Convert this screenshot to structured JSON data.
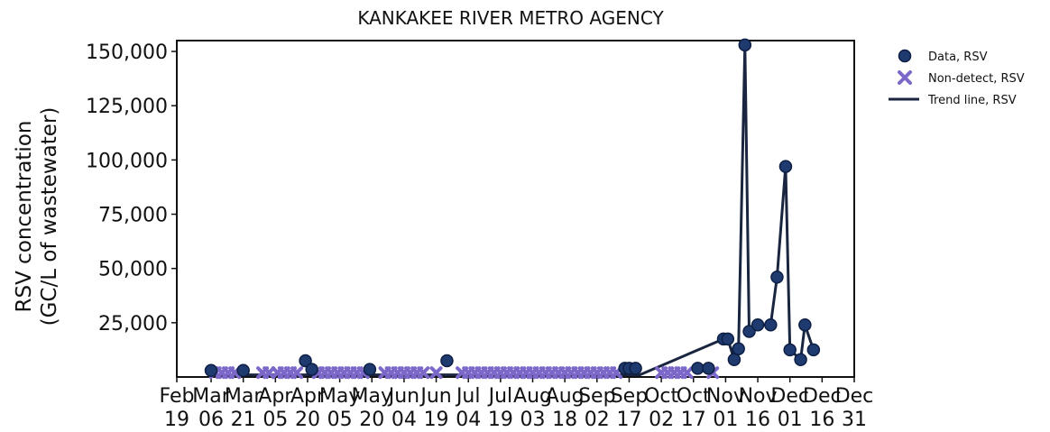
{
  "chart_data": {
    "type": "scatter",
    "title": "KANKAKEE RIVER METRO AGENCY",
    "ylabel_lines": [
      "RSV concentration",
      "(GC/L of wastewater)"
    ],
    "xlabel": "",
    "ylim": [
      0,
      155000
    ],
    "x_range": [
      "2024-02-19",
      "2024-12-31"
    ],
    "y_ticks": [
      {
        "value": 25000,
        "label": "25,000"
      },
      {
        "value": 50000,
        "label": "50,000"
      },
      {
        "value": 75000,
        "label": "75,000"
      },
      {
        "value": 100000,
        "label": "100,000"
      },
      {
        "value": 125000,
        "label": "125,000"
      },
      {
        "value": 150000,
        "label": "150,000"
      }
    ],
    "x_ticks": [
      {
        "date": "2024-02-19",
        "label": [
          "Feb",
          "19"
        ]
      },
      {
        "date": "2024-03-06",
        "label": [
          "Mar",
          "06"
        ]
      },
      {
        "date": "2024-03-21",
        "label": [
          "Mar",
          "21"
        ]
      },
      {
        "date": "2024-04-05",
        "label": [
          "Apr",
          "05"
        ]
      },
      {
        "date": "2024-04-20",
        "label": [
          "Apr",
          "20"
        ]
      },
      {
        "date": "2024-05-05",
        "label": [
          "May",
          "05"
        ]
      },
      {
        "date": "2024-05-20",
        "label": [
          "May",
          "20"
        ]
      },
      {
        "date": "2024-06-04",
        "label": [
          "Jun",
          "04"
        ]
      },
      {
        "date": "2024-06-19",
        "label": [
          "Jun",
          "19"
        ]
      },
      {
        "date": "2024-07-04",
        "label": [
          "Jul",
          "04"
        ]
      },
      {
        "date": "2024-07-19",
        "label": [
          "Jul",
          "19"
        ]
      },
      {
        "date": "2024-08-03",
        "label": [
          "Aug",
          "03"
        ]
      },
      {
        "date": "2024-08-18",
        "label": [
          "Aug",
          "18"
        ]
      },
      {
        "date": "2024-09-02",
        "label": [
          "Sep",
          "02"
        ]
      },
      {
        "date": "2024-09-17",
        "label": [
          "Sep",
          "17"
        ]
      },
      {
        "date": "2024-10-02",
        "label": [
          "Oct",
          "02"
        ]
      },
      {
        "date": "2024-10-17",
        "label": [
          "Oct",
          "17"
        ]
      },
      {
        "date": "2024-11-01",
        "label": [
          "Nov",
          "01"
        ]
      },
      {
        "date": "2024-11-16",
        "label": [
          "Nov",
          "16"
        ]
      },
      {
        "date": "2024-12-01",
        "label": [
          "Dec",
          "01"
        ]
      },
      {
        "date": "2024-12-16",
        "label": [
          "Dec",
          "16"
        ]
      },
      {
        "date": "2024-12-31",
        "label": [
          "Dec",
          "31"
        ]
      }
    ],
    "legend": {
      "placement": "outside-right",
      "entries": [
        {
          "label": "Data, RSV",
          "marker": "circle"
        },
        {
          "label": "Non-detect, RSV",
          "marker": "x"
        },
        {
          "label": "Trend line, RSV",
          "marker": "line"
        }
      ]
    },
    "colors": {
      "data_marker": "#1f3a6e",
      "data_edge": "#0d1f45",
      "nondetect_marker": "#7b68c8",
      "trend_line": "#1a2540"
    },
    "series": [
      {
        "name": "Data, RSV",
        "marker": "circle",
        "points": [
          {
            "x": "2024-03-06",
            "y": 3000
          },
          {
            "x": "2024-03-21",
            "y": 3000
          },
          {
            "x": "2024-04-19",
            "y": 7500
          },
          {
            "x": "2024-04-22",
            "y": 3500
          },
          {
            "x": "2024-05-19",
            "y": 3500
          },
          {
            "x": "2024-06-24",
            "y": 7500
          },
          {
            "x": "2024-09-15",
            "y": 4000
          },
          {
            "x": "2024-09-17",
            "y": 4000
          },
          {
            "x": "2024-09-20",
            "y": 4000
          },
          {
            "x": "2024-10-19",
            "y": 4000
          },
          {
            "x": "2024-10-24",
            "y": 4000
          },
          {
            "x": "2024-10-31",
            "y": 17500
          },
          {
            "x": "2024-11-02",
            "y": 17500
          },
          {
            "x": "2024-11-05",
            "y": 8000
          },
          {
            "x": "2024-11-07",
            "y": 13000
          },
          {
            "x": "2024-11-10",
            "y": 153000
          },
          {
            "x": "2024-11-12",
            "y": 21000
          },
          {
            "x": "2024-11-16",
            "y": 24000
          },
          {
            "x": "2024-11-22",
            "y": 24000
          },
          {
            "x": "2024-11-25",
            "y": 46000
          },
          {
            "x": "2024-11-29",
            "y": 97000
          },
          {
            "x": "2024-12-01",
            "y": 12500
          },
          {
            "x": "2024-12-06",
            "y": 8000
          },
          {
            "x": "2024-12-08",
            "y": 24000
          },
          {
            "x": "2024-12-12",
            "y": 12500
          }
        ]
      },
      {
        "name": "Non-detect, RSV",
        "marker": "x",
        "points": [
          {
            "x": "2024-03-08",
            "y": 2000
          },
          {
            "x": "2024-03-11",
            "y": 2000
          },
          {
            "x": "2024-03-14",
            "y": 2000
          },
          {
            "x": "2024-03-17",
            "y": 2000
          },
          {
            "x": "2024-03-30",
            "y": 2000
          },
          {
            "x": "2024-04-02",
            "y": 2000
          },
          {
            "x": "2024-04-06",
            "y": 2000
          },
          {
            "x": "2024-04-09",
            "y": 2000
          },
          {
            "x": "2024-04-12",
            "y": 2000
          },
          {
            "x": "2024-04-15",
            "y": 2000
          },
          {
            "x": "2024-04-25",
            "y": 2000
          },
          {
            "x": "2024-04-28",
            "y": 2000
          },
          {
            "x": "2024-05-01",
            "y": 2000
          },
          {
            "x": "2024-05-04",
            "y": 2000
          },
          {
            "x": "2024-05-07",
            "y": 2000
          },
          {
            "x": "2024-05-10",
            "y": 2000
          },
          {
            "x": "2024-05-13",
            "y": 2000
          },
          {
            "x": "2024-05-16",
            "y": 2000
          },
          {
            "x": "2024-05-26",
            "y": 2000
          },
          {
            "x": "2024-05-29",
            "y": 2000
          },
          {
            "x": "2024-06-01",
            "y": 2000
          },
          {
            "x": "2024-06-04",
            "y": 2000
          },
          {
            "x": "2024-06-07",
            "y": 2000
          },
          {
            "x": "2024-06-10",
            "y": 2000
          },
          {
            "x": "2024-06-13",
            "y": 2000
          },
          {
            "x": "2024-06-19",
            "y": 2000
          },
          {
            "x": "2024-07-01",
            "y": 2000
          },
          {
            "x": "2024-07-04",
            "y": 2000
          },
          {
            "x": "2024-07-07",
            "y": 2000
          },
          {
            "x": "2024-07-10",
            "y": 2000
          },
          {
            "x": "2024-07-13",
            "y": 2000
          },
          {
            "x": "2024-07-16",
            "y": 2000
          },
          {
            "x": "2024-07-19",
            "y": 2000
          },
          {
            "x": "2024-07-22",
            "y": 2000
          },
          {
            "x": "2024-07-25",
            "y": 2000
          },
          {
            "x": "2024-07-28",
            "y": 2000
          },
          {
            "x": "2024-07-31",
            "y": 2000
          },
          {
            "x": "2024-08-03",
            "y": 2000
          },
          {
            "x": "2024-08-06",
            "y": 2000
          },
          {
            "x": "2024-08-09",
            "y": 2000
          },
          {
            "x": "2024-08-12",
            "y": 2000
          },
          {
            "x": "2024-08-15",
            "y": 2000
          },
          {
            "x": "2024-08-18",
            "y": 2000
          },
          {
            "x": "2024-08-21",
            "y": 2000
          },
          {
            "x": "2024-08-24",
            "y": 2000
          },
          {
            "x": "2024-08-27",
            "y": 2000
          },
          {
            "x": "2024-08-30",
            "y": 2000
          },
          {
            "x": "2024-09-02",
            "y": 2000
          },
          {
            "x": "2024-09-05",
            "y": 2000
          },
          {
            "x": "2024-09-08",
            "y": 2000
          },
          {
            "x": "2024-09-11",
            "y": 2000
          },
          {
            "x": "2024-10-02",
            "y": 2000
          },
          {
            "x": "2024-10-05",
            "y": 2000
          },
          {
            "x": "2024-10-08",
            "y": 2000
          },
          {
            "x": "2024-10-11",
            "y": 2000
          },
          {
            "x": "2024-10-14",
            "y": 2000
          },
          {
            "x": "2024-10-26",
            "y": 2000
          }
        ]
      },
      {
        "name": "Trend line, RSV",
        "marker": "line",
        "points": [
          {
            "x": "2024-03-06",
            "y": 1000
          },
          {
            "x": "2024-09-22",
            "y": 1000
          },
          {
            "x": "2024-10-31",
            "y": 17500
          },
          {
            "x": "2024-11-02",
            "y": 17500
          },
          {
            "x": "2024-11-05",
            "y": 8000
          },
          {
            "x": "2024-11-07",
            "y": 13000
          },
          {
            "x": "2024-11-10",
            "y": 153000
          },
          {
            "x": "2024-11-12",
            "y": 21000
          },
          {
            "x": "2024-11-16",
            "y": 24000
          },
          {
            "x": "2024-11-22",
            "y": 24000
          },
          {
            "x": "2024-11-25",
            "y": 46000
          },
          {
            "x": "2024-11-29",
            "y": 97000
          },
          {
            "x": "2024-12-01",
            "y": 12500
          },
          {
            "x": "2024-12-06",
            "y": 8000
          },
          {
            "x": "2024-12-08",
            "y": 24000
          },
          {
            "x": "2024-12-12",
            "y": 12500
          }
        ]
      }
    ]
  }
}
